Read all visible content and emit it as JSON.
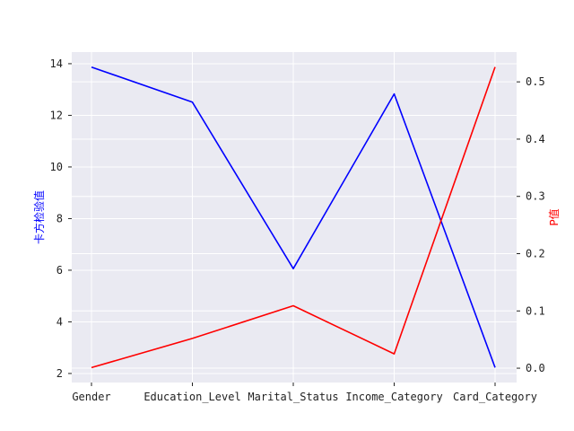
{
  "chart_data": {
    "type": "line",
    "categories": [
      "Gender",
      "Education_Level",
      "Marital_Status",
      "Income_Category",
      "Card_Category"
    ],
    "series": [
      {
        "name": "",
        "axis": "left",
        "color": "#0000ff",
        "values": [
          13.87,
          12.51,
          6.06,
          12.83,
          2.23
        ]
      },
      {
        "name": "",
        "axis": "right",
        "color": "#ff0000",
        "values": [
          0.001,
          0.052,
          0.109,
          0.025,
          0.526
        ]
      }
    ],
    "left_axis": {
      "label": "卡方检验值",
      "color": "#0000ff",
      "ylim": [
        1.65,
        14.45
      ],
      "ticks": [
        2,
        4,
        6,
        8,
        10,
        12,
        14
      ]
    },
    "right_axis": {
      "label": "P值",
      "color": "#ff0000",
      "ylim": [
        -0.025,
        0.552
      ],
      "ticks": [
        0.0,
        0.1,
        0.2,
        0.3,
        0.4,
        0.5
      ],
      "tick_labels": [
        "0.0",
        "0.1",
        "0.2",
        "0.3",
        "0.4",
        "0.5"
      ]
    },
    "background": "#eaeaf2",
    "grid": true
  }
}
